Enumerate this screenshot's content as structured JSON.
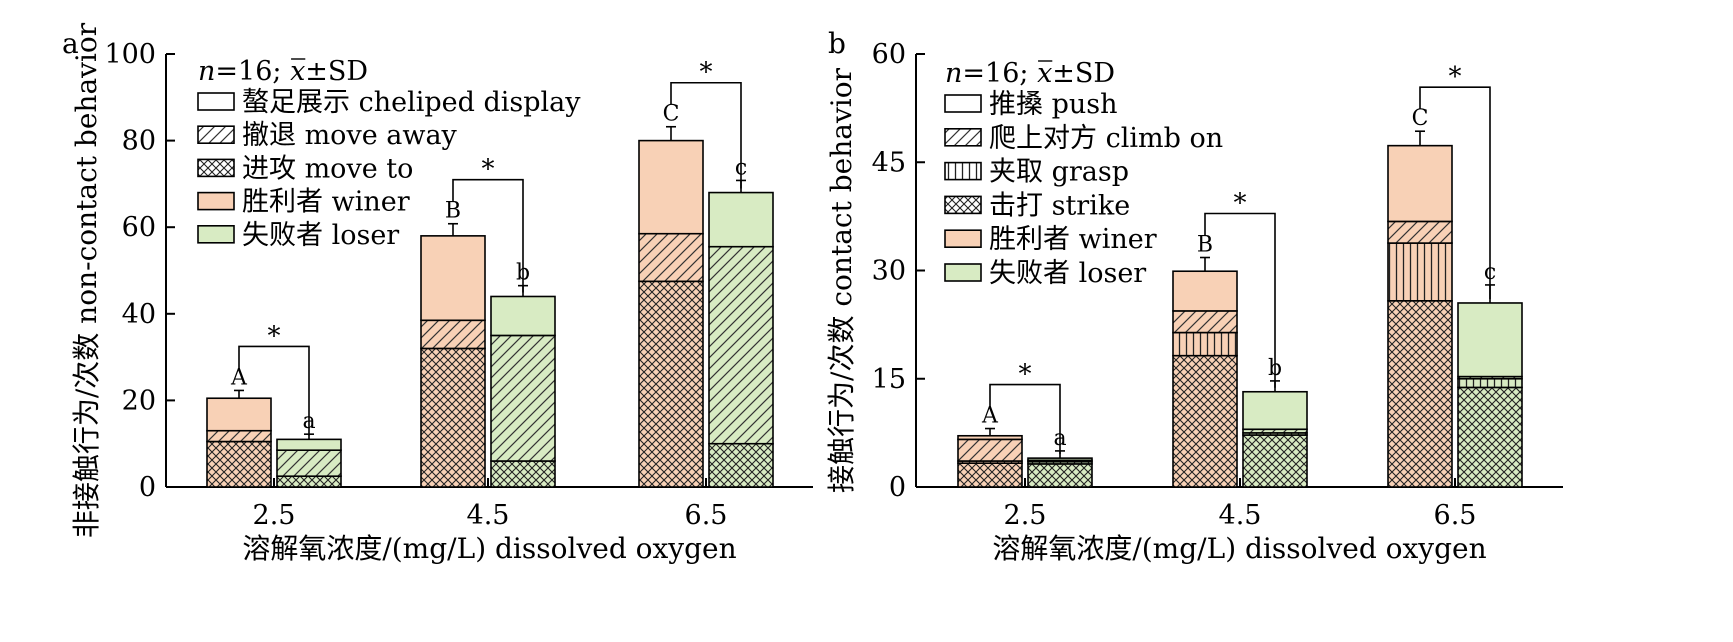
{
  "chart_data": [
    {
      "type": "bar",
      "stacked": true,
      "panel_label": "a",
      "note_n": "n",
      "note_rest": "=16; ",
      "note_xbar": "x",
      "note_sd": "±SD",
      "xlabel": "溶解氧浓度/(mg/L) dissolved oxygen",
      "ylabel": "非接触行为/次数 non-contact behavior",
      "ylim": [
        0,
        100
      ],
      "yticks": [
        "0",
        "20",
        "40",
        "60",
        "80",
        "100"
      ],
      "categories": [
        "2.5",
        "4.5",
        "6.5"
      ],
      "groups": [
        {
          "name": "胜利者 winer",
          "color": "#f8d1b6"
        },
        {
          "name": "失败者 loser",
          "color": "#d8ebc3"
        }
      ],
      "series": [
        {
          "name": "螯足展示 cheliped display",
          "pattern": "none",
          "winer": [
            7.5,
            19.5,
            21.5
          ],
          "loser": [
            2.5,
            9,
            12.5
          ]
        },
        {
          "name": "撤退 move away",
          "pattern": "diag",
          "winer": [
            2.5,
            6.5,
            11
          ],
          "loser": [
            6,
            29,
            45.5
          ]
        },
        {
          "name": "进攻 move to",
          "pattern": "cross",
          "winer": [
            10.5,
            32,
            47.5
          ],
          "loser": [
            2.5,
            6,
            10
          ]
        }
      ],
      "error_winer": [
        1.8,
        2.8,
        3.2
      ],
      "error_loser": [
        1.2,
        2.5,
        2.8
      ],
      "letters_winer": [
        "A",
        "B",
        "C"
      ],
      "letters_loser": [
        "a",
        "b",
        "c"
      ],
      "significance": [
        "*",
        "*",
        "*"
      ]
    },
    {
      "type": "bar",
      "stacked": true,
      "panel_label": "b",
      "note_n": "n",
      "note_rest": "=16; ",
      "note_xbar": "x",
      "note_sd": "±SD",
      "xlabel": "溶解氧浓度/(mg/L) dissolved oxygen",
      "ylabel": "接触行为/次数 contact behavior",
      "ylim": [
        0,
        60
      ],
      "yticks": [
        "0",
        "15",
        "30",
        "45",
        "60"
      ],
      "categories": [
        "2.5",
        "4.5",
        "6.5"
      ],
      "groups": [
        {
          "name": "胜利者 winer",
          "color": "#f8d1b6"
        },
        {
          "name": "失败者 loser",
          "color": "#d8ebc3"
        }
      ],
      "series": [
        {
          "name": "推搡 push",
          "pattern": "none",
          "winer": [
            0.5,
            5.5,
            10.5
          ],
          "loser": [
            0.3,
            5.2,
            10.2
          ]
        },
        {
          "name": "爬上对方 climb on",
          "pattern": "diag",
          "winer": [
            3,
            3,
            3
          ],
          "loser": [
            0.2,
            0.5,
            0.3
          ]
        },
        {
          "name": "夹取 grasp",
          "pattern": "vert",
          "winer": [
            0.3,
            3.2,
            8
          ],
          "loser": [
            0.3,
            0.3,
            1.2
          ]
        },
        {
          "name": "击打 strike",
          "pattern": "cross",
          "winer": [
            3.3,
            18.2,
            25.8
          ],
          "loser": [
            3.2,
            7.2,
            13.8
          ]
        }
      ],
      "error_winer": [
        1.0,
        1.9,
        2.0
      ],
      "error_loser": [
        1.0,
        1.5,
        2.5
      ],
      "letters_winer": [
        "A",
        "B",
        "C"
      ],
      "letters_loser": [
        "a",
        "b",
        "c"
      ],
      "significance": [
        "*",
        "*",
        "*"
      ]
    }
  ]
}
